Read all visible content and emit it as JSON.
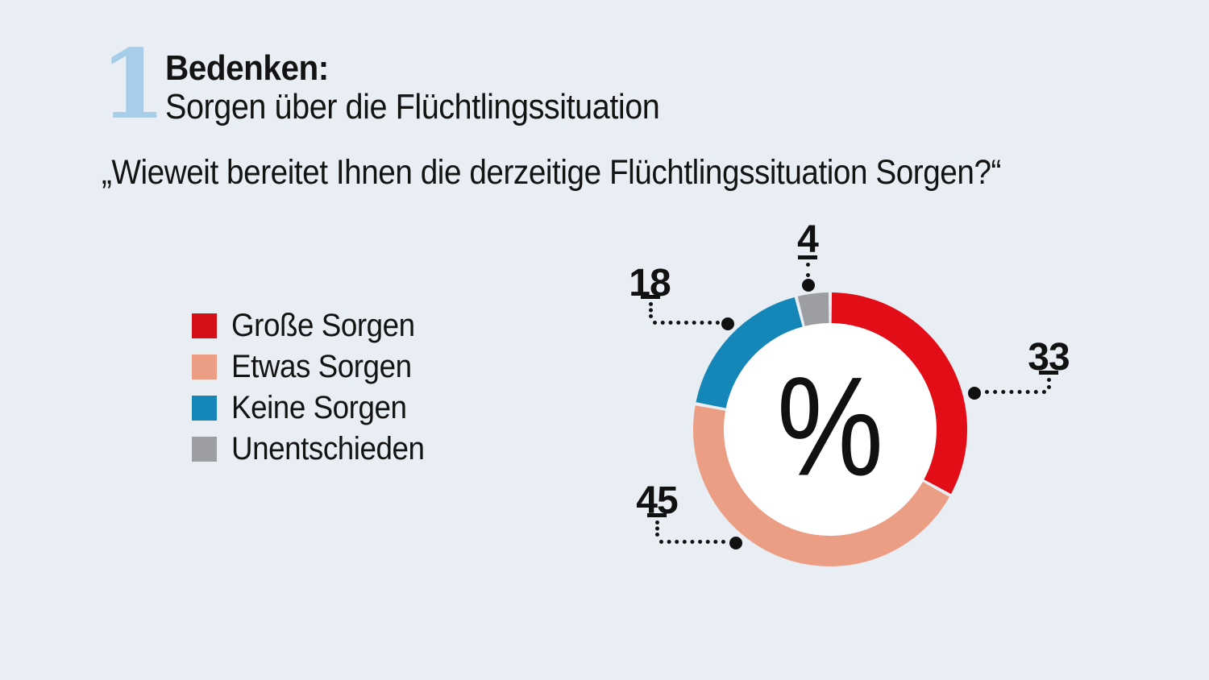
{
  "header": {
    "chapter_number": "1",
    "title_line1": "Bedenken:",
    "title_line2": "Sorgen über die Flüchtlingssituation",
    "question": "„Wieweit bereitet Ihnen die derzeitige Flüchtlingssituation Sorgen?“"
  },
  "legend": {
    "items": [
      {
        "label": "Große Sorgen",
        "color": "#d41119"
      },
      {
        "label": "Etwas Sorgen",
        "color": "#ec9e84"
      },
      {
        "label": "Keine Sorgen",
        "color": "#1486b8"
      },
      {
        "label": "Unentschieden",
        "color": "#9c9ea1"
      }
    ]
  },
  "chart_data": {
    "type": "pie",
    "variant": "donut",
    "title": "Sorgen über die Flüchtlingssituation",
    "unit": "%",
    "center_label": "%",
    "categories": [
      "Große Sorgen",
      "Etwas Sorgen",
      "Keine Sorgen",
      "Unentschieden"
    ],
    "values": [
      33,
      45,
      18,
      4
    ],
    "colors": [
      "#e20d16",
      "#ec9e84",
      "#1486b8",
      "#9c9ea1"
    ],
    "start_angle_deg": 0,
    "direction": "clockwise",
    "legend_position": "left",
    "callout_labels": [
      "33",
      "45",
      "18",
      "4"
    ]
  },
  "colors": {
    "background": "#e9eef4",
    "chapter_number": "#a6cde9",
    "text": "#131313"
  }
}
